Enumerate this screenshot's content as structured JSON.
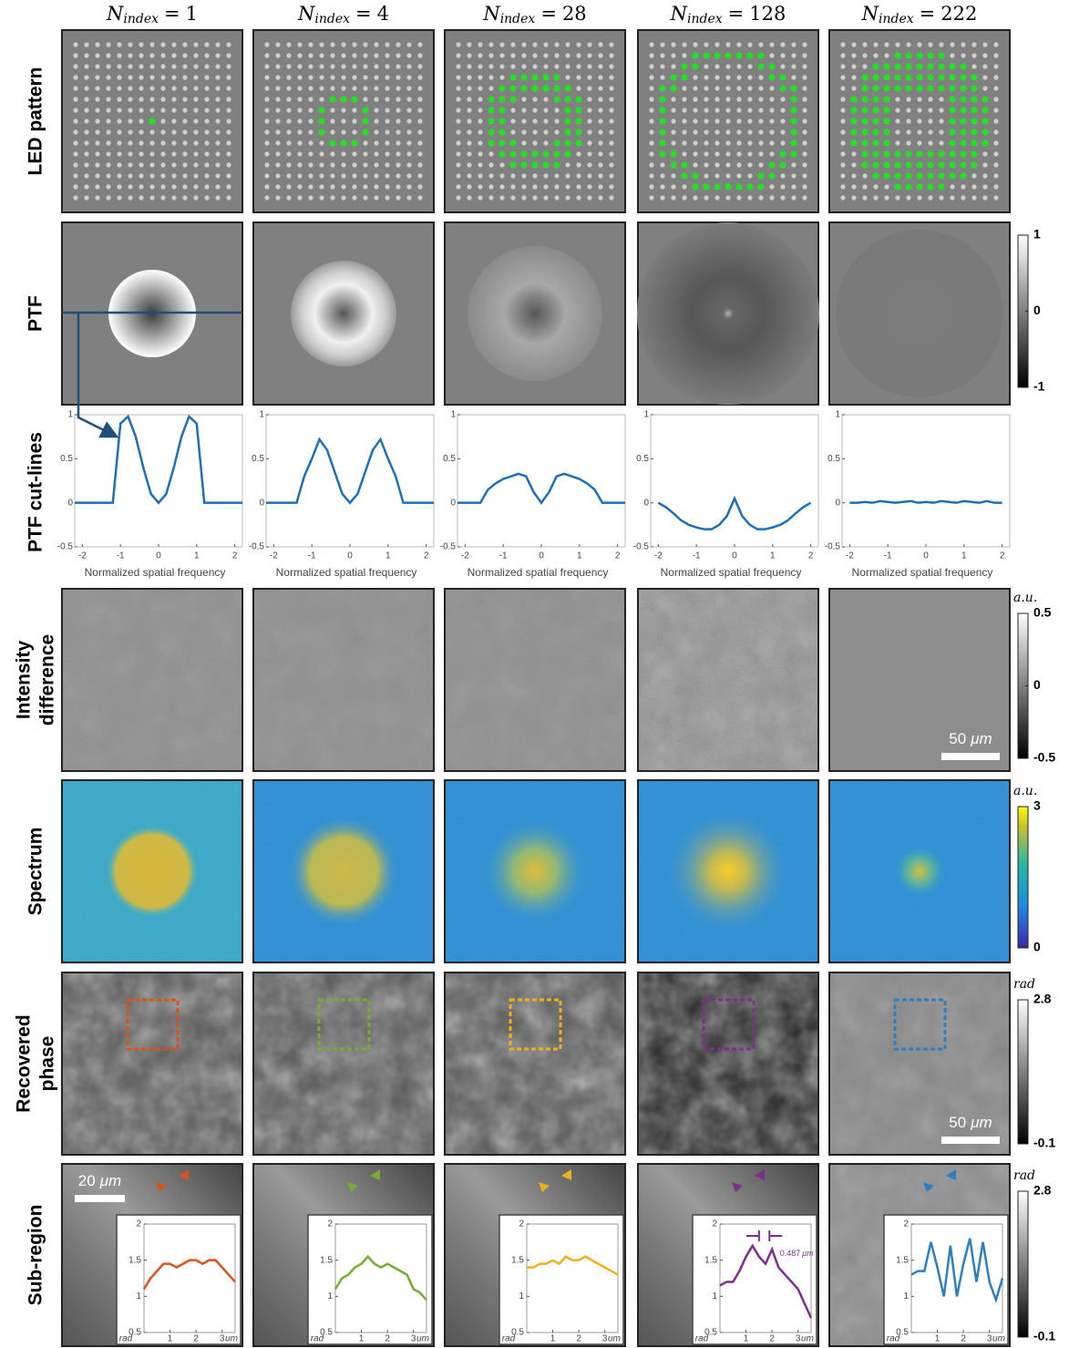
{
  "header": {
    "symbol": "N",
    "subscript": "index",
    "equals": "="
  },
  "columns": [
    1,
    4,
    28,
    128,
    222
  ],
  "row_labels": {
    "led": [
      "LED pattern"
    ],
    "ptf": [
      "PTF"
    ],
    "cut": [
      "PTF cut-lines"
    ],
    "intensity": [
      "Intensity",
      "difference"
    ],
    "spectrum": [
      "Spectrum"
    ],
    "phase": [
      "Recovered",
      "phase"
    ],
    "sub": [
      "Sub-region"
    ]
  },
  "colorbars": {
    "ptf": {
      "ticks": [
        1,
        0,
        -1
      ]
    },
    "intensity": {
      "unit": "a.u.",
      "ticks": [
        0.5,
        0,
        -0.5
      ]
    },
    "spectrum": {
      "unit": "a.u.",
      "ticks": [
        3,
        0
      ]
    },
    "phase": {
      "unit": "rad",
      "ticks": [
        2.8,
        -0.1
      ]
    },
    "sub": {
      "unit": "rad",
      "ticks": [
        2.8,
        -0.1
      ]
    }
  },
  "scale_bars": {
    "intensity": {
      "value": 50,
      "unit": "μm"
    },
    "phase": {
      "value": 50,
      "unit": "μm"
    },
    "sub": {
      "value": 20,
      "unit": "μm"
    }
  },
  "cut_lines": {
    "type": "line",
    "x_label": "Normalized spatial frequency",
    "xlim": [
      -2.2,
      2.2
    ],
    "ylim": [
      -0.5,
      1
    ],
    "xticks": [
      -2,
      -1,
      0,
      1,
      2
    ],
    "yticks": [
      1,
      0.5,
      0,
      -0.5
    ],
    "x": [
      -2.2,
      -2,
      -1.8,
      -1.6,
      -1.4,
      -1.2,
      -1,
      -0.8,
      -0.6,
      -0.4,
      -0.2,
      0,
      0.2,
      0.4,
      0.6,
      0.8,
      1,
      1.2,
      1.4,
      1.6,
      1.8,
      2,
      2.2
    ],
    "series": [
      {
        "color": "#1f6fb5",
        "values": [
          0,
          0,
          0,
          0,
          0,
          0,
          0.9,
          0.98,
          0.75,
          0.4,
          0.1,
          0,
          0.1,
          0.4,
          0.75,
          0.98,
          0.9,
          0,
          0,
          0,
          0,
          0,
          0
        ]
      },
      {
        "color": "#1f6fb5",
        "values": [
          0,
          0,
          0,
          0,
          0,
          0.3,
          0.5,
          0.72,
          0.6,
          0.35,
          0.1,
          0,
          0.1,
          0.35,
          0.6,
          0.72,
          0.5,
          0.3,
          0,
          0,
          0,
          0,
          0
        ]
      },
      {
        "color": "#1f6fb5",
        "values": [
          0,
          0,
          0,
          0,
          0.15,
          0.22,
          0.27,
          0.3,
          0.33,
          0.3,
          0.12,
          0,
          0.12,
          0.3,
          0.33,
          0.3,
          0.27,
          0.22,
          0.15,
          0,
          0,
          0,
          0
        ]
      },
      {
        "color": "#1f6fb5",
        "values": [
          null,
          0,
          -0.05,
          -0.12,
          -0.2,
          -0.25,
          -0.28,
          -0.3,
          -0.3,
          -0.25,
          -0.15,
          0.05,
          -0.15,
          -0.25,
          -0.3,
          -0.3,
          -0.28,
          -0.25,
          -0.2,
          -0.12,
          -0.05,
          0,
          null
        ]
      },
      {
        "color": "#1f6fb5",
        "values": [
          null,
          0,
          0,
          0.01,
          0,
          0.02,
          0.01,
          0,
          0.01,
          0.02,
          0,
          0.01,
          0,
          0.02,
          0.01,
          0,
          0.02,
          0.01,
          0,
          0.02,
          0,
          0,
          null
        ]
      }
    ]
  },
  "insets": {
    "type": "line",
    "x_label": "um",
    "y_label": "rad",
    "xlim": [
      0,
      3.5
    ],
    "ylim": [
      0.5,
      2
    ],
    "xticks": [
      1,
      2,
      3
    ],
    "yticks": [
      0.5,
      1,
      1.5,
      2
    ],
    "x": [
      0,
      0.25,
      0.5,
      0.75,
      1,
      1.25,
      1.5,
      1.75,
      2,
      2.25,
      2.5,
      2.75,
      3,
      3.25,
      3.5
    ],
    "series": [
      {
        "color": "#d95319",
        "values": [
          1.1,
          1.25,
          1.35,
          1.45,
          1.45,
          1.4,
          1.45,
          1.5,
          1.5,
          1.45,
          1.5,
          1.5,
          1.4,
          1.3,
          1.2
        ]
      },
      {
        "color": "#77ac30",
        "values": [
          1.1,
          1.25,
          1.3,
          1.4,
          1.45,
          1.55,
          1.45,
          1.4,
          1.45,
          1.4,
          1.35,
          1.3,
          1.1,
          1.05,
          0.95
        ]
      },
      {
        "color": "#edb120",
        "values": [
          1.4,
          1.4,
          1.45,
          1.45,
          1.5,
          1.45,
          1.55,
          1.5,
          1.5,
          1.55,
          1.5,
          1.45,
          1.4,
          1.35,
          1.3
        ]
      },
      {
        "color": "#7e2f8e",
        "values": [
          1.15,
          1.2,
          1.2,
          1.35,
          1.55,
          1.7,
          1.55,
          1.45,
          1.65,
          1.4,
          1.3,
          1.2,
          1.1,
          0.9,
          0.7
        ]
      },
      {
        "color": "#2e7fc0",
        "values": [
          1.3,
          1.35,
          1.35,
          1.75,
          1.4,
          1,
          1.7,
          1,
          1.45,
          1.8,
          1.2,
          1.75,
          1.2,
          0.95,
          1.25
        ]
      }
    ],
    "annotation": {
      "value": 0.487,
      "unit": "μm"
    }
  }
}
